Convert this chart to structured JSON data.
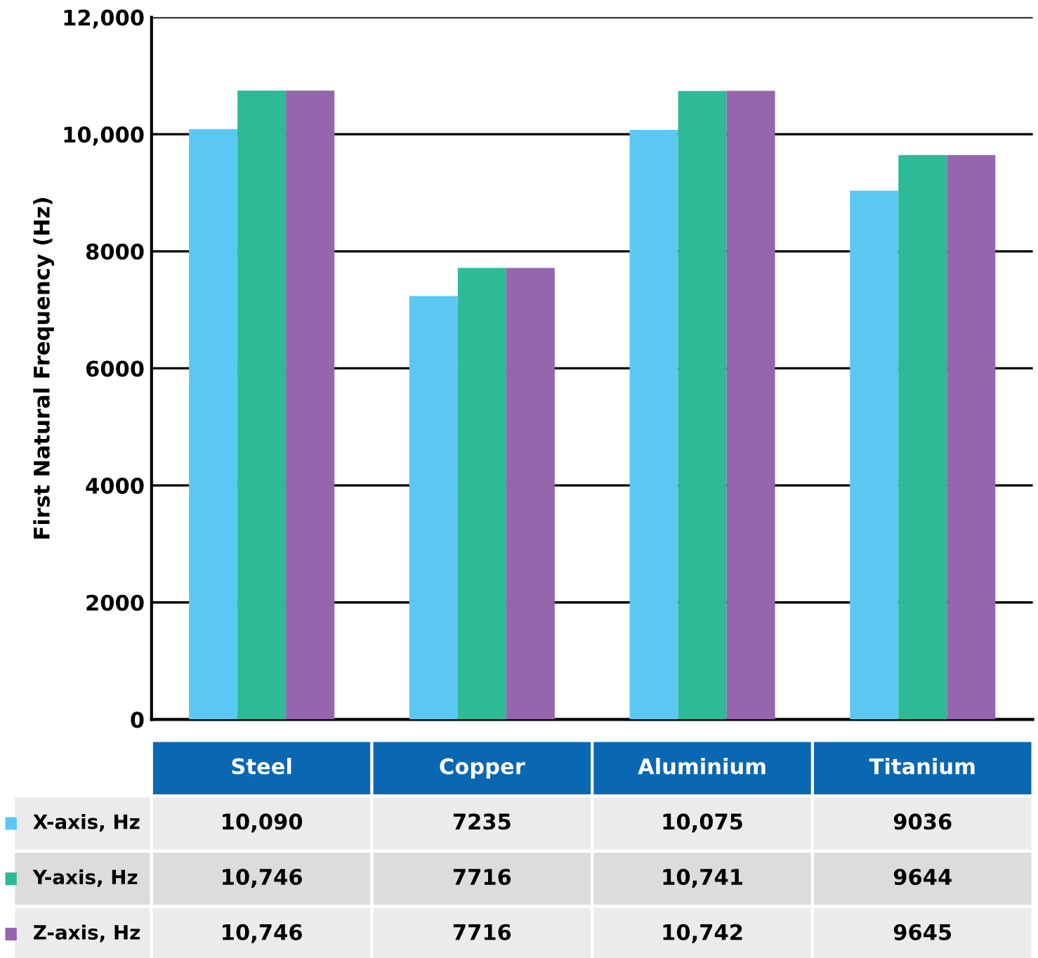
{
  "chart_data": {
    "type": "bar",
    "ylabel": "First Natural Frequency (Hz)",
    "categories": [
      "Steel",
      "Copper",
      "Aluminium",
      "Titanium"
    ],
    "series": [
      {
        "name": "X-axis, Hz",
        "color": "#5bc8f2",
        "values": [
          10090,
          7235,
          10075,
          9036
        ],
        "value_labels": [
          "10,090",
          "7235",
          "10,075",
          "9036"
        ]
      },
      {
        "name": "Y-axis, Hz",
        "color": "#2dba96",
        "values": [
          10746,
          7716,
          10741,
          9644
        ],
        "value_labels": [
          "10,746",
          "7716",
          "10,741",
          "9644"
        ]
      },
      {
        "name": "Z-axis, Hz",
        "color": "#9565ad",
        "values": [
          10746,
          7716,
          10742,
          9645
        ],
        "value_labels": [
          "10,746",
          "7716",
          "10,742",
          "9645"
        ]
      }
    ],
    "ylim": [
      0,
      12000
    ],
    "yticks": [
      0,
      2000,
      4000,
      6000,
      8000,
      {
        "value": 10000,
        "label": "10,000"
      },
      {
        "value": 12000,
        "label": "12,000"
      }
    ],
    "grid": "y",
    "legend": "bottom left"
  }
}
